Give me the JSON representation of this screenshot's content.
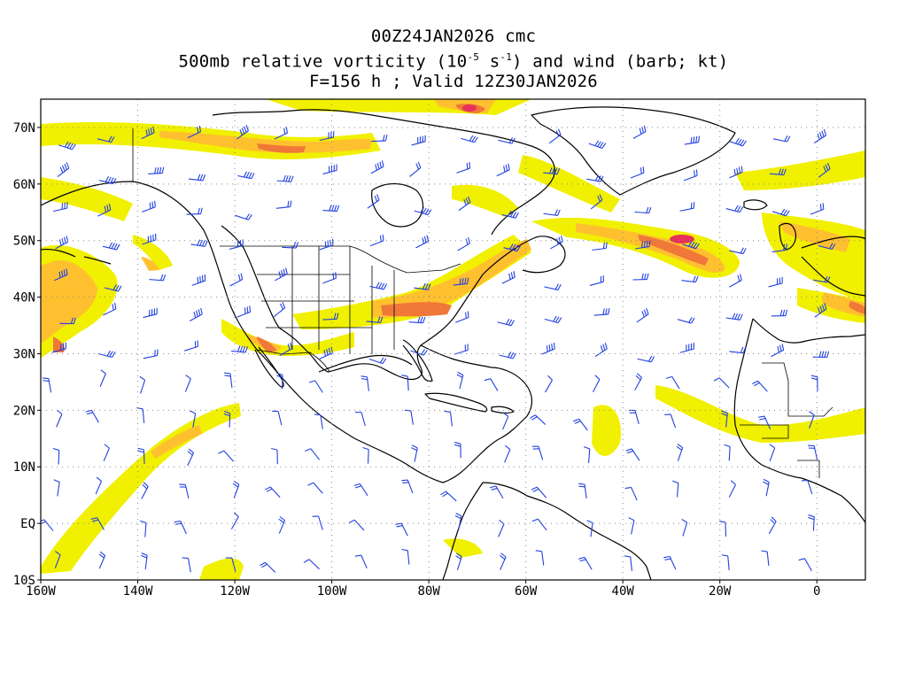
{
  "title": {
    "line1": "00Z24JAN2026 cmc",
    "line2_prefix": "500mb relative vorticity (10",
    "line2_exp1": "-5",
    "line2_mid": " s",
    "line2_exp2": "-1",
    "line2_suffix": ") and wind (barb; kt)",
    "line3": "F=156 h ; Valid 12Z30JAN2026"
  },
  "map": {
    "lon_range": [
      -160,
      10
    ],
    "lat_range": [
      -10,
      75
    ],
    "lon_ticks": [
      "160W",
      "140W",
      "120W",
      "100W",
      "80W",
      "60W",
      "40W",
      "20W",
      "0"
    ],
    "lon_tick_values": [
      -160,
      -140,
      -120,
      -100,
      -80,
      -60,
      -40,
      -20,
      0
    ],
    "lat_ticks": [
      "70N",
      "60N",
      "50N",
      "40N",
      "30N",
      "20N",
      "10N",
      "EQ",
      "10S"
    ],
    "lat_tick_values": [
      70,
      60,
      50,
      40,
      30,
      20,
      10,
      0,
      -10
    ],
    "gridlines": true,
    "colors": {
      "vort_low": "#f0f000",
      "vort_mid": "#ffd000",
      "vort_high": "#f08030",
      "vort_max": "#e8305a",
      "barb": "#2040e0",
      "coast": "#000000",
      "grid": "#888888"
    }
  }
}
